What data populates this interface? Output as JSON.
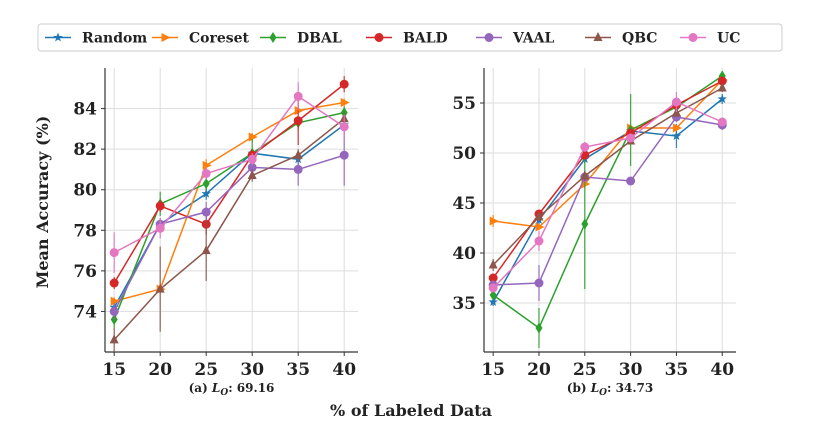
{
  "chart_data": [
    {
      "type": "line",
      "title": "(a) L_O: 69.16",
      "title_parts": {
        "prefix": "(a) ",
        "var": "L",
        "sub": "O",
        "suffix": ": 69.16"
      },
      "xlabel": "",
      "ylabel": "Mean Accuracy (%)",
      "x": [
        15,
        20,
        25,
        30,
        35,
        40
      ],
      "xlim": [
        14,
        41.5
      ],
      "ylim": [
        72,
        86
      ],
      "yticks": [
        74,
        76,
        78,
        80,
        82,
        84
      ],
      "grid": true,
      "series": [
        {
          "name": "Random",
          "values": [
            74.2,
            78.3,
            79.8,
            81.8,
            81.5,
            83.2
          ],
          "err": [
            0.3,
            0.3,
            0.3,
            0.2,
            0.3,
            0.3
          ]
        },
        {
          "name": "Coreset",
          "values": [
            74.5,
            75.1,
            81.2,
            82.6,
            83.9,
            84.3
          ],
          "err": [
            0.2,
            0.2,
            0.3,
            0.2,
            0.2,
            0.2
          ]
        },
        {
          "name": "DBAL",
          "values": [
            73.6,
            79.3,
            80.3,
            81.8,
            83.3,
            83.8
          ],
          "err": [
            0.4,
            0.6,
            0.3,
            0.7,
            0.3,
            0.3
          ]
        },
        {
          "name": "BALD",
          "values": [
            75.4,
            79.2,
            78.3,
            81.7,
            83.4,
            85.2
          ],
          "err": [
            0.3,
            0.3,
            0.5,
            0.3,
            1.2,
            0.4
          ]
        },
        {
          "name": "VAAL",
          "values": [
            74.0,
            78.3,
            78.9,
            81.1,
            81.0,
            81.7
          ],
          "err": [
            0.4,
            0.3,
            0.5,
            0.4,
            0.8,
            1.5
          ]
        },
        {
          "name": "QBC",
          "values": [
            72.6,
            75.1,
            77.0,
            80.7,
            81.7,
            83.5
          ],
          "err": [
            0.6,
            2.1,
            1.5,
            0.3,
            0.3,
            0.3
          ]
        },
        {
          "name": "UC",
          "values": [
            76.9,
            78.1,
            80.8,
            81.5,
            84.6,
            83.1
          ],
          "err": [
            1.0,
            0.5,
            0.3,
            0.3,
            0.7,
            0.6
          ]
        }
      ]
    },
    {
      "type": "line",
      "title": "(b) L_O: 34.73",
      "title_parts": {
        "prefix": "(b) ",
        "var": "L",
        "sub": "O",
        "suffix": ": 34.73"
      },
      "xlabel": "",
      "ylabel": "",
      "x": [
        15,
        20,
        25,
        30,
        35,
        40
      ],
      "xlim": [
        14,
        41.5
      ],
      "ylim": [
        30.1,
        58.5
      ],
      "yticks": [
        35,
        40,
        45,
        50,
        55
      ],
      "grid": true,
      "series": [
        {
          "name": "Random",
          "values": [
            35.1,
            43.3,
            49.4,
            52.2,
            51.7,
            55.4
          ],
          "err": [
            0.4,
            0.4,
            0.4,
            0.3,
            1.2,
            0.5
          ]
        },
        {
          "name": "Coreset",
          "values": [
            43.2,
            42.6,
            46.9,
            52.5,
            52.5,
            57.3
          ],
          "err": [
            0.6,
            0.3,
            0.4,
            0.3,
            0.3,
            0.4
          ]
        },
        {
          "name": "DBAL",
          "values": [
            35.8,
            32.5,
            42.9,
            52.3,
            54.6,
            57.7
          ],
          "err": [
            0.5,
            2.0,
            6.5,
            3.6,
            0.4,
            0.5
          ]
        },
        {
          "name": "BALD",
          "values": [
            37.5,
            43.9,
            49.8,
            52.0,
            54.8,
            57.2
          ],
          "err": [
            0.4,
            0.3,
            0.3,
            0.3,
            0.3,
            0.3
          ]
        },
        {
          "name": "VAAL",
          "values": [
            36.8,
            37.0,
            47.6,
            47.2,
            53.6,
            52.8
          ],
          "err": [
            0.4,
            1.8,
            0.5,
            0.3,
            0.5,
            0.5
          ]
        },
        {
          "name": "QBC",
          "values": [
            38.8,
            43.6,
            47.7,
            51.2,
            54.0,
            56.5
          ],
          "err": [
            0.6,
            0.4,
            0.5,
            0.3,
            0.4,
            0.4
          ]
        },
        {
          "name": "UC",
          "values": [
            36.5,
            41.2,
            50.6,
            51.5,
            55.1,
            53.1
          ],
          "err": [
            0.4,
            1.0,
            0.5,
            0.4,
            1.0,
            0.4
          ]
        }
      ]
    }
  ],
  "shared_xlabel": "% of Labeled Data",
  "legend": {
    "placement": "top",
    "entries": [
      {
        "name": "Random",
        "color": "#1f77b4",
        "marker": "star"
      },
      {
        "name": "Coreset",
        "color": "#ff7f0e",
        "marker": "triangle-right"
      },
      {
        "name": "DBAL",
        "color": "#2ca02c",
        "marker": "diamond"
      },
      {
        "name": "BALD",
        "color": "#d62728",
        "marker": "octagon"
      },
      {
        "name": "VAAL",
        "color": "#9467bd",
        "marker": "circle"
      },
      {
        "name": "QBC",
        "color": "#8c564b",
        "marker": "triangle-up"
      },
      {
        "name": "UC",
        "color": "#e377c2",
        "marker": "circle"
      }
    ]
  }
}
